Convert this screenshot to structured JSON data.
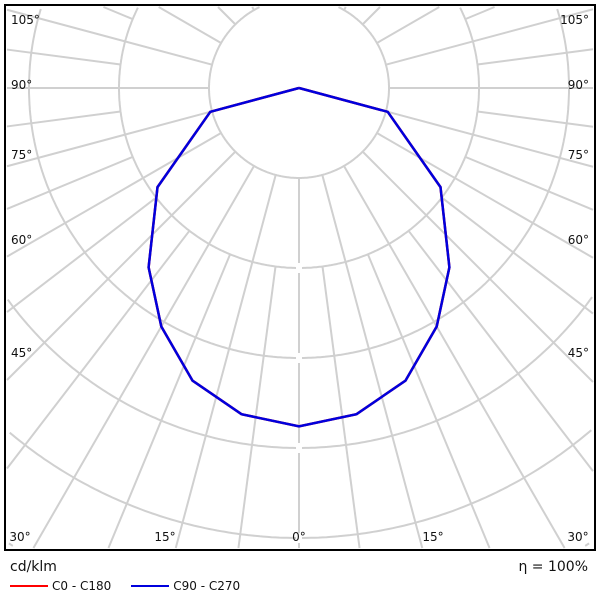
{
  "chart_data": {
    "type": "polar",
    "unit_label": "cd/klm",
    "efficiency_label": "η = 100%",
    "angle_labels_bottom": [
      "30°",
      "15°",
      "0°",
      "15°",
      "30°"
    ],
    "angle_labels_side": [
      "45°",
      "60°",
      "75°",
      "90°",
      "105°"
    ],
    "grid": true,
    "series": [
      {
        "name": "C0 - C180",
        "color": "#ff0000",
        "angles": [
          0,
          10,
          20,
          30,
          40,
          55,
          75,
          90
        ],
        "values_in_grid_rings": [
          3.76,
          3.68,
          3.46,
          3.06,
          2.6,
          1.92,
          1.02,
          0
        ]
      },
      {
        "name": "C90 - C270",
        "color": "#0000dd",
        "angles": [
          0,
          10,
          20,
          30,
          40,
          55,
          75,
          90
        ],
        "values_in_grid_rings": [
          3.76,
          3.68,
          3.46,
          3.06,
          2.6,
          1.92,
          1.02,
          0
        ]
      }
    ],
    "legend_position": "bottom-left"
  }
}
